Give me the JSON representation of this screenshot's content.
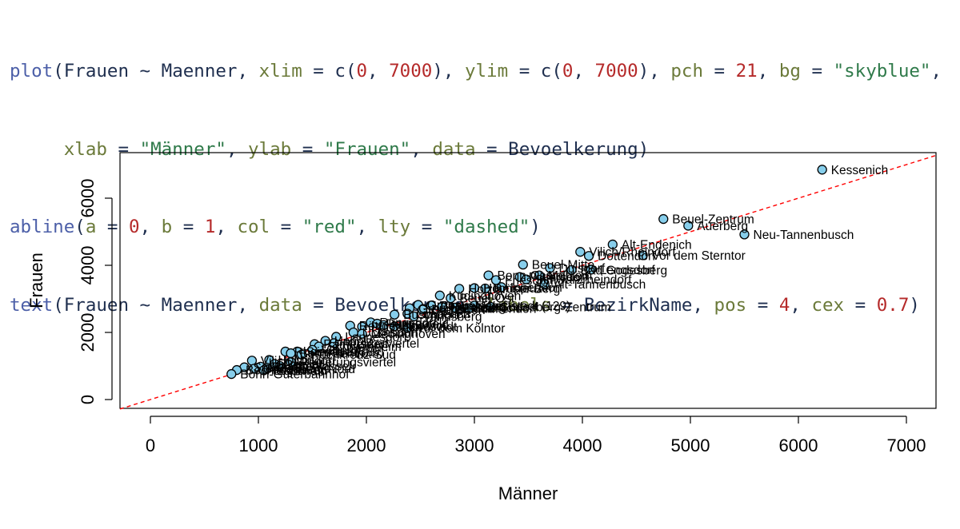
{
  "code": {
    "lines": [
      [
        {
          "t": "plot",
          "c": "fn"
        },
        {
          "t": "(Frauen ~ Maenner, ",
          "c": "plain"
        },
        {
          "t": "xlim",
          "c": "arg"
        },
        {
          "t": " = c(",
          "c": "plain"
        },
        {
          "t": "0",
          "c": "num"
        },
        {
          "t": ", ",
          "c": "plain"
        },
        {
          "t": "7000",
          "c": "num"
        },
        {
          "t": "), ",
          "c": "plain"
        },
        {
          "t": "ylim",
          "c": "arg"
        },
        {
          "t": " = c(",
          "c": "plain"
        },
        {
          "t": "0",
          "c": "num"
        },
        {
          "t": ", ",
          "c": "plain"
        },
        {
          "t": "7000",
          "c": "num"
        },
        {
          "t": "), ",
          "c": "plain"
        },
        {
          "t": "pch",
          "c": "arg"
        },
        {
          "t": " = ",
          "c": "plain"
        },
        {
          "t": "21",
          "c": "num"
        },
        {
          "t": ", ",
          "c": "plain"
        },
        {
          "t": "bg",
          "c": "arg"
        },
        {
          "t": " = ",
          "c": "plain"
        },
        {
          "t": "\"skyblue\"",
          "c": "str"
        },
        {
          "t": ",",
          "c": "plain"
        }
      ],
      [
        {
          "t": "     ",
          "c": "plain"
        },
        {
          "t": "xlab",
          "c": "arg"
        },
        {
          "t": " = ",
          "c": "plain"
        },
        {
          "t": "\"Männer\"",
          "c": "str"
        },
        {
          "t": ", ",
          "c": "plain"
        },
        {
          "t": "ylab",
          "c": "arg"
        },
        {
          "t": " = ",
          "c": "plain"
        },
        {
          "t": "\"Frauen\"",
          "c": "str"
        },
        {
          "t": ", ",
          "c": "plain"
        },
        {
          "t": "data",
          "c": "arg"
        },
        {
          "t": " = Bevoelkerung)",
          "c": "plain"
        }
      ],
      [
        {
          "t": "abline",
          "c": "fn"
        },
        {
          "t": "(",
          "c": "plain"
        },
        {
          "t": "a",
          "c": "arg"
        },
        {
          "t": " = ",
          "c": "plain"
        },
        {
          "t": "0",
          "c": "num"
        },
        {
          "t": ", ",
          "c": "plain"
        },
        {
          "t": "b",
          "c": "arg"
        },
        {
          "t": " = ",
          "c": "plain"
        },
        {
          "t": "1",
          "c": "num"
        },
        {
          "t": ", ",
          "c": "plain"
        },
        {
          "t": "col",
          "c": "arg"
        },
        {
          "t": " = ",
          "c": "plain"
        },
        {
          "t": "\"red\"",
          "c": "str"
        },
        {
          "t": ", ",
          "c": "plain"
        },
        {
          "t": "lty",
          "c": "arg"
        },
        {
          "t": " = ",
          "c": "plain"
        },
        {
          "t": "\"dashed\"",
          "c": "str"
        },
        {
          "t": ")",
          "c": "plain"
        }
      ],
      [
        {
          "t": "text",
          "c": "fn"
        },
        {
          "t": "(Frauen ~ Maenner, ",
          "c": "plain"
        },
        {
          "t": "data",
          "c": "arg"
        },
        {
          "t": " = Bevoelkerung, ",
          "c": "plain"
        },
        {
          "t": "labels",
          "c": "arg"
        },
        {
          "t": " = BezirkName, ",
          "c": "plain"
        },
        {
          "t": "pos",
          "c": "arg"
        },
        {
          "t": " = ",
          "c": "plain"
        },
        {
          "t": "4",
          "c": "num"
        },
        {
          "t": ", ",
          "c": "plain"
        },
        {
          "t": "cex",
          "c": "arg"
        },
        {
          "t": " = ",
          "c": "plain"
        },
        {
          "t": "0.7",
          "c": "num"
        },
        {
          "t": ")",
          "c": "plain"
        }
      ]
    ]
  },
  "chart_data": {
    "type": "scatter",
    "xlabel": "Männer",
    "ylabel": "Frauen",
    "xlim": [
      0,
      7000
    ],
    "ylim": [
      0,
      7000
    ],
    "x_ticks": [
      0,
      1000,
      2000,
      3000,
      4000,
      5000,
      6000,
      7000
    ],
    "y_ticks": [
      0,
      2000,
      4000,
      6000
    ],
    "point_fill": "#87ceeb",
    "point_stroke": "#000000",
    "reference_line": {
      "a": 0,
      "b": 1,
      "color": "#ff0000",
      "style": "dashed"
    },
    "grid": false,
    "points": [
      {
        "x": 6220,
        "y": 6850,
        "label": "Kessenich"
      },
      {
        "x": 4750,
        "y": 5380,
        "label": "Beuel-Zentrum"
      },
      {
        "x": 4980,
        "y": 5180,
        "label": "Auerberg"
      },
      {
        "x": 5500,
        "y": 4920,
        "label": "Neu-Tannenbusch"
      },
      {
        "x": 4280,
        "y": 4620,
        "label": "Alt-Endenich"
      },
      {
        "x": 3980,
        "y": 4400,
        "label": "Vilich/Rheindorf"
      },
      {
        "x": 4060,
        "y": 4280,
        "label": "Dottendorf"
      },
      {
        "x": 4560,
        "y": 4300,
        "label": "Vor dem Sterntor"
      },
      {
        "x": 3450,
        "y": 4020,
        "label": "Beuel-Mitte"
      },
      {
        "x": 3700,
        "y": 3920,
        "label": "Duisdorf"
      },
      {
        "x": 3900,
        "y": 3860,
        "label": "Bad Godesberg"
      },
      {
        "x": 4080,
        "y": 3870,
        "label": "Lengsdorf"
      },
      {
        "x": 3600,
        "y": 3700,
        "label": "Mehlem"
      },
      {
        "x": 3130,
        "y": 3700,
        "label": "Bonn-Castell"
      },
      {
        "x": 3420,
        "y": 3650,
        "label": "Plittersdorf"
      },
      {
        "x": 3480,
        "y": 3580,
        "label": "Schwarzrheindorf"
      },
      {
        "x": 3200,
        "y": 3560,
        "label": "Friesdorf"
      },
      {
        "x": 3650,
        "y": 3440,
        "label": "Alt-Tannenbusch"
      },
      {
        "x": 3250,
        "y": 3350,
        "label": "Ippendorf"
      },
      {
        "x": 3000,
        "y": 3320,
        "label": "Hochkreuz"
      },
      {
        "x": 2860,
        "y": 3300,
        "label": "Holzlar"
      },
      {
        "x": 3100,
        "y": 3310,
        "label": "Brüser Berg"
      },
      {
        "x": 2680,
        "y": 3100,
        "label": "Küdinghoven"
      },
      {
        "x": 2780,
        "y": 3020,
        "label": "Beuel-Ost"
      },
      {
        "x": 3000,
        "y": 2800,
        "label": "Weststadt (129)"
      },
      {
        "x": 3150,
        "y": 2760,
        "label": "Godesberg-Zentrum"
      },
      {
        "x": 2480,
        "y": 2820,
        "label": "Gronau"
      },
      {
        "x": 2600,
        "y": 2800,
        "label": "Poppelsdorf"
      },
      {
        "x": 2700,
        "y": 2760,
        "label": "Hardtberg"
      },
      {
        "x": 2820,
        "y": 2740,
        "label": "Lessenich"
      },
      {
        "x": 2950,
        "y": 2720,
        "label": "Muffendorf"
      },
      {
        "x": 2400,
        "y": 2720,
        "label": "Graurheindorf"
      },
      {
        "x": 2520,
        "y": 2680,
        "label": "Dransdorf"
      },
      {
        "x": 2260,
        "y": 2530,
        "label": "Buschdorf"
      },
      {
        "x": 2380,
        "y": 2560,
        "label": "Limperich"
      },
      {
        "x": 2440,
        "y": 2480,
        "label": "Venusberg"
      },
      {
        "x": 2040,
        "y": 2300,
        "label": "Rüngsdorf"
      },
      {
        "x": 2100,
        "y": 2260,
        "label": "Pennenfeld"
      },
      {
        "x": 2160,
        "y": 2220,
        "label": "Heiderhof"
      },
      {
        "x": 2260,
        "y": 2180,
        "label": "Nordstadt"
      },
      {
        "x": 2380,
        "y": 2130,
        "label": "Vor dem Kölntor"
      },
      {
        "x": 1850,
        "y": 2200,
        "label": "Röttgen"
      },
      {
        "x": 1960,
        "y": 2170,
        "label": "Pützchen"
      },
      {
        "x": 1880,
        "y": 2000,
        "label": "Ückesdorf"
      },
      {
        "x": 1960,
        "y": 1960,
        "label": "Medinghoven"
      },
      {
        "x": 1720,
        "y": 1870,
        "label": "Lannesdorf"
      },
      {
        "x": 1620,
        "y": 1750,
        "label": "Hoholz"
      },
      {
        "x": 1700,
        "y": 1680,
        "label": "Musikerviertel"
      },
      {
        "x": 1520,
        "y": 1650,
        "label": "Ramersdorf"
      },
      {
        "x": 1560,
        "y": 1580,
        "label": "Schweinheim"
      },
      {
        "x": 1500,
        "y": 1480,
        "label": "Villiprott"
      },
      {
        "x": 1250,
        "y": 1430,
        "label": "Rheinviertel"
      },
      {
        "x": 1360,
        "y": 1430,
        "label": "Siegaue (380)"
      },
      {
        "x": 1300,
        "y": 1380,
        "label": "Bonn-Zentrum"
      },
      {
        "x": 1400,
        "y": 1340,
        "label": "Hochkreuz-Süd"
      },
      {
        "x": 940,
        "y": 1160,
        "label": "Vilich-Müldorf"
      },
      {
        "x": 1100,
        "y": 1180,
        "label": "Holtorf"
      },
      {
        "x": 1300,
        "y": 1120,
        "label": "Regierungsviertel"
      },
      {
        "x": 1150,
        "y": 1060,
        "label": "Geislar"
      },
      {
        "x": 1200,
        "y": 1000,
        "label": "Oberkassel"
      },
      {
        "x": 1020,
        "y": 980,
        "label": "Ennert"
      },
      {
        "x": 1080,
        "y": 950,
        "label": "Bonn-Süd"
      },
      {
        "x": 870,
        "y": 960,
        "label": "Südstadt"
      },
      {
        "x": 960,
        "y": 920,
        "label": "Godesberg-Nord"
      },
      {
        "x": 800,
        "y": 880,
        "label": "Bechlinghoven"
      },
      {
        "x": 1050,
        "y": 870,
        "label": "Stadtwald"
      },
      {
        "x": 750,
        "y": 760,
        "label": "Bonn-Güterbahnhof"
      }
    ]
  }
}
